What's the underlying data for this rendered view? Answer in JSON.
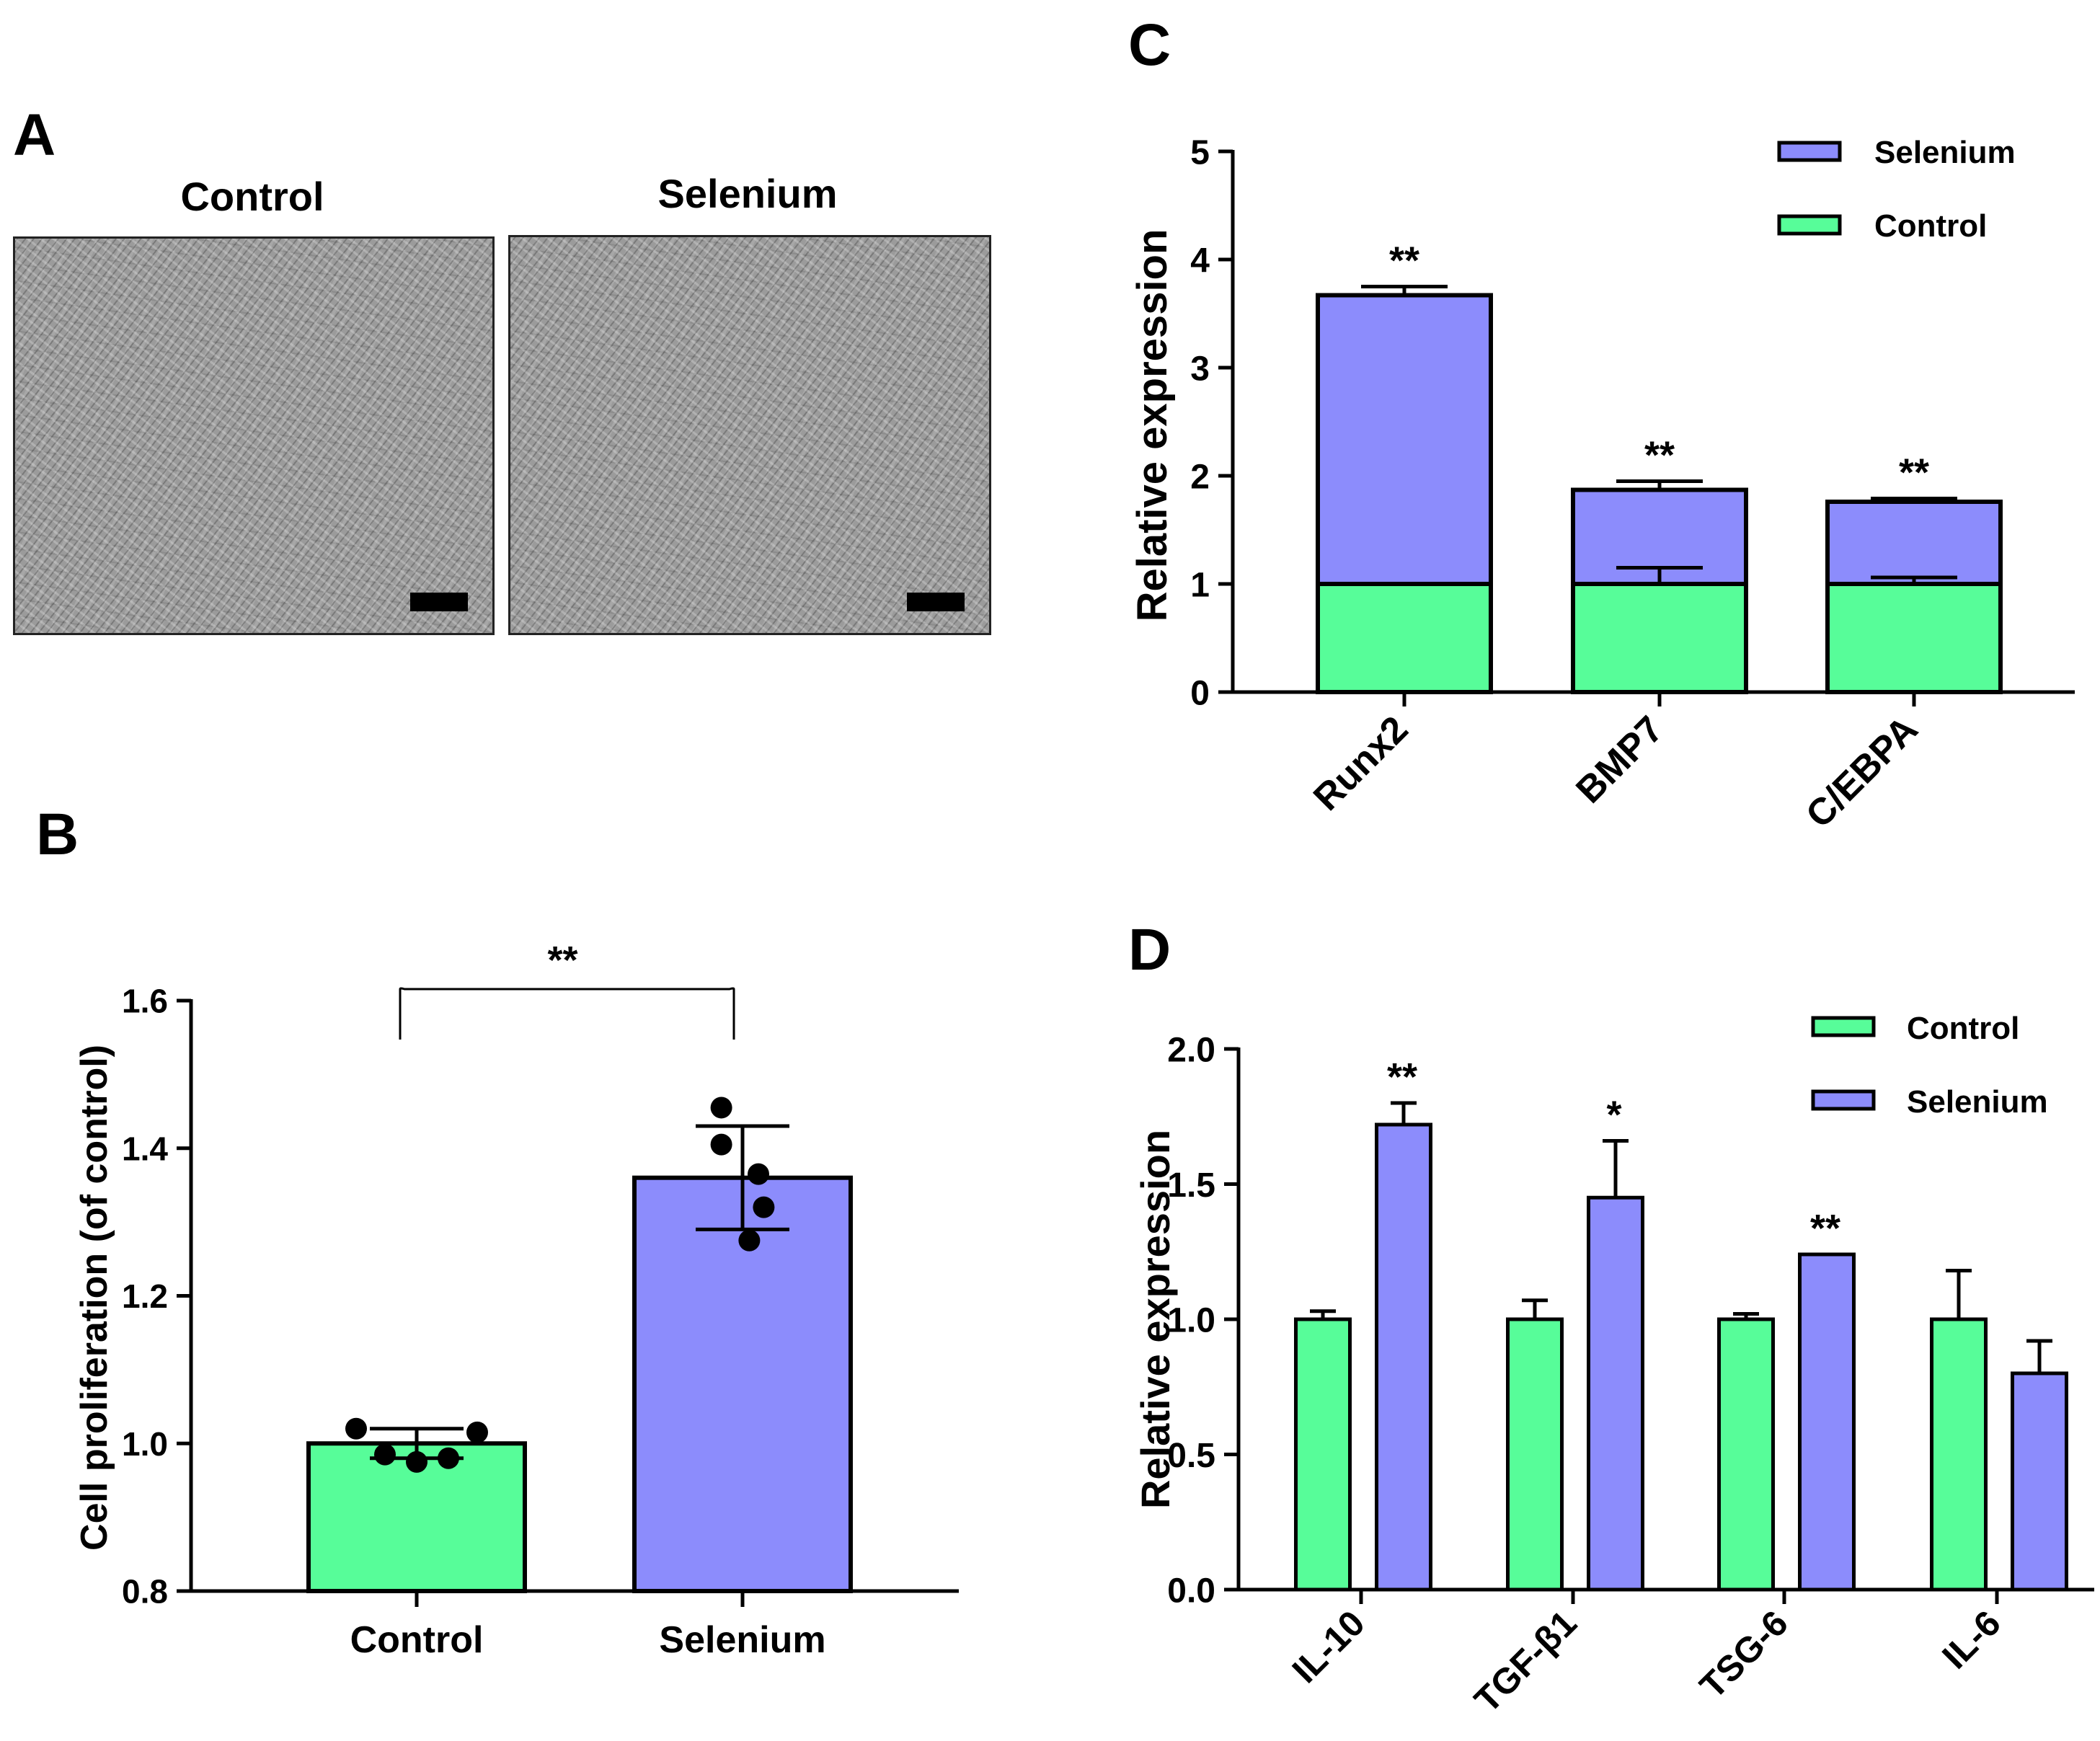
{
  "colors": {
    "control": "#57FD99",
    "selenium": "#8C8CFC",
    "axis": "#000000"
  },
  "panelA": {
    "letter": "A",
    "images": [
      {
        "label": "Control"
      },
      {
        "label": "Selenium"
      }
    ]
  },
  "chart_data": [
    {
      "panel": "B",
      "type": "bar",
      "xlabel": "",
      "ylabel": "Cell proliferation (of control)",
      "ylim": [
        0.8,
        1.6
      ],
      "yticks": [
        "0.8",
        "1.0",
        "1.2",
        "1.4",
        "1.6"
      ],
      "categories": [
        "Control",
        "Selenium"
      ],
      "values": [
        1.0,
        1.36
      ],
      "errors": [
        0.02,
        0.07
      ],
      "points": [
        [
          1.02,
          0.985,
          0.975,
          0.98,
          1.015
        ],
        [
          1.455,
          1.405,
          1.365,
          1.32,
          1.275
        ]
      ],
      "significance": [
        {
          "from": 0,
          "to": 1,
          "label": "**"
        }
      ]
    },
    {
      "panel": "C",
      "type": "bar",
      "stacked": true,
      "xlabel": "",
      "ylabel": "Relative expression",
      "ylim": [
        0,
        5
      ],
      "yticks": [
        "0",
        "1",
        "2",
        "3",
        "4",
        "5"
      ],
      "categories": [
        "Runx2",
        "BMP7",
        "C/EBPA"
      ],
      "series": [
        {
          "name": "Control",
          "values": [
            1.0,
            1.0,
            1.0
          ],
          "errors": [
            0.0,
            0.15,
            0.06
          ]
        },
        {
          "name": "Selenium",
          "values": [
            3.67,
            1.87,
            1.76
          ],
          "errors": [
            0.08,
            0.08,
            0.03
          ]
        }
      ],
      "annotations": [
        "**",
        "**",
        "**"
      ],
      "legend": [
        "Selenium",
        "Control"
      ],
      "legend_position": "top-right"
    },
    {
      "panel": "D",
      "type": "bar",
      "xlabel": "",
      "ylabel": "Relative expression",
      "ylim": [
        0.0,
        2.0
      ],
      "yticks": [
        "0.0",
        "0.5",
        "1.0",
        "1.5",
        "2.0"
      ],
      "categories": [
        "IL-10",
        "TGF-β1",
        "TSG-6",
        "IL-6"
      ],
      "series": [
        {
          "name": "Control",
          "values": [
            1.0,
            1.0,
            1.0,
            1.0
          ],
          "errors": [
            0.03,
            0.07,
            0.02,
            0.18
          ]
        },
        {
          "name": "Selenium",
          "values": [
            1.72,
            1.45,
            1.24,
            0.8
          ],
          "errors": [
            0.08,
            0.21,
            0.0,
            0.12
          ]
        }
      ],
      "annotations": [
        "**",
        "*",
        "**",
        ""
      ],
      "legend": [
        "Control",
        "Selenium"
      ],
      "legend_position": "top-right"
    }
  ]
}
